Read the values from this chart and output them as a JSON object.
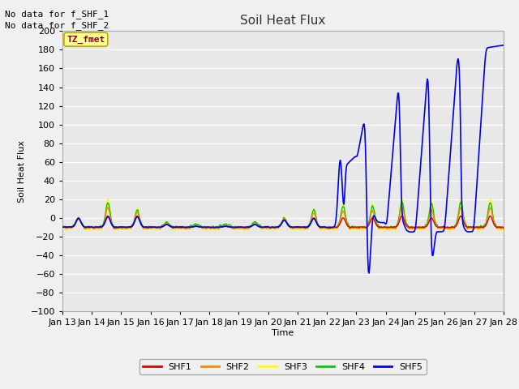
{
  "title": "Soil Heat Flux",
  "xlabel": "Time",
  "ylabel": "Soil Heat Flux",
  "ylim": [
    -100,
    200
  ],
  "yticks": [
    -100,
    -80,
    -60,
    -40,
    -20,
    0,
    20,
    40,
    60,
    80,
    100,
    120,
    140,
    160,
    180,
    200
  ],
  "bg_color": "#e8e8e8",
  "plot_bg": "#f0f0f0",
  "grid_color": "#ffffff",
  "annotations": [
    "No data for f_SHF_1",
    "No data for f_SHF_2"
  ],
  "legend_box_text": "TZ_fmet",
  "legend_box_bg": "#ffff99",
  "legend_box_border": "#bbaa00",
  "legend_box_text_color": "#880000",
  "series_colors": {
    "SHF1": "#dd0000",
    "SHF2": "#ff8800",
    "SHF3": "#ffff00",
    "SHF4": "#00cc00",
    "SHF5": "#0000ee"
  },
  "xtick_labels": [
    "Jan 13",
    "Jan 14",
    "Jan 15",
    "Jan 16",
    "Jan 17",
    "Jan 18",
    "Jan 19",
    "Jan 20",
    "Jan 21",
    "Jan 22",
    "Jan 23",
    "Jan 24",
    "Jan 25",
    "Jan 26",
    "Jan 27",
    "Jan 28"
  ],
  "font_size": 8,
  "title_font_size": 11
}
